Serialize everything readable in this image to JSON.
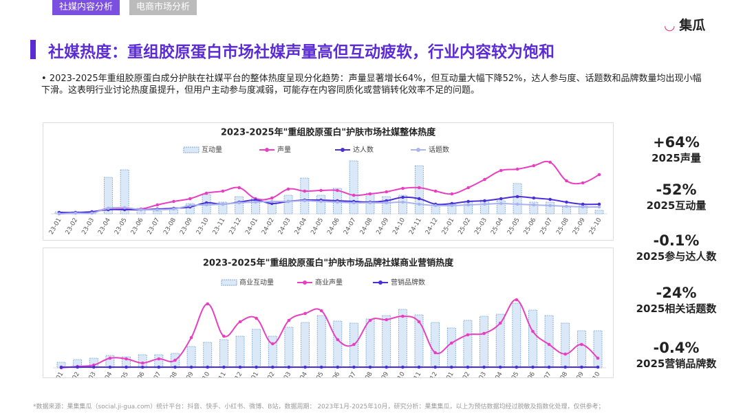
{
  "header": {
    "tabs": [
      "社媒内容分析",
      "电商市场分析"
    ],
    "logo": "集瓜"
  },
  "title": "社媒热度：重组胶原蛋白市场社媒声量高但互动疲软，行业内容较为饱和",
  "bullet": "2023-2025年重组胶原蛋白成分护肤在社媒平台的整体热度呈现分化趋势：声量显著增长64%，但互动量大幅下降52%，达人参与度、话题数和品牌数量均出现小幅下滑。这表明行业讨论热度虽提升，但用户主动参与度减弱，可能存在内容同质化或营销转化效率不足的问题。",
  "kpis": [
    {
      "value": "+64%",
      "label": "2025声量"
    },
    {
      "value": "-52%",
      "label": "2025互动量"
    },
    {
      "value": "-0.1%",
      "label": "2025参与达人数"
    },
    {
      "value": "-24%",
      "label": "2025相关话题数"
    },
    {
      "value": "-0.4%",
      "label": "2025营销品牌数"
    }
  ],
  "footnote": "*数据来源：果集集瓜（social.ji-gua.com）统计平台：抖音、快手、小红书、微博、B站，数据周期： 2023年1月-2025年10月，研究分析：果集集瓜，以上为预估数据均经过脱敏及指数化处理，仅供参考；",
  "chart_data": [
    {
      "type": "combo",
      "title": "2023-2025年\"重组胶原蛋白\"护肤市场社媒整体热度",
      "ylim": [
        0,
        110
      ],
      "categories": [
        "23-01",
        "23-02",
        "23-03",
        "23-04",
        "23-05",
        "23-06",
        "23-07",
        "23-08",
        "23-09",
        "23-10",
        "23-11",
        "23-12",
        "24-01",
        "24-02",
        "24-03",
        "24-04",
        "24-05",
        "24-06",
        "24-07",
        "24-08",
        "24-09",
        "24-10",
        "24-11",
        "24-12",
        "25-01",
        "25-02",
        "25-03",
        "25-04",
        "25-05",
        "25-06",
        "25-07",
        "25-08",
        "25-09",
        "25-10"
      ],
      "series": [
        {
          "name": "互动量",
          "kind": "bar",
          "color": "#7aa6d6",
          "values": [
            3,
            3,
            3,
            53,
            64,
            8,
            4,
            6,
            15,
            28,
            17,
            25,
            22,
            18,
            27,
            52,
            27,
            37,
            77,
            30,
            25,
            27,
            70,
            13,
            14,
            18,
            20,
            19,
            44,
            17,
            17,
            10,
            12,
            5
          ]
        },
        {
          "name": "声量",
          "kind": "line",
          "color": "#e83fc0",
          "values": [
            0,
            1,
            2,
            8,
            8,
            7,
            13,
            18,
            22,
            30,
            33,
            38,
            22,
            23,
            36,
            33,
            34,
            34,
            27,
            29,
            32,
            37,
            38,
            33,
            29,
            38,
            50,
            63,
            65,
            70,
            75,
            48,
            45,
            57
          ]
        },
        {
          "name": "达人数",
          "kind": "line",
          "color": "#4a2fd6",
          "values": [
            2,
            2,
            3,
            6,
            6,
            6,
            7,
            8,
            10,
            16,
            14,
            17,
            20,
            15,
            18,
            20,
            20,
            19,
            18,
            17,
            19,
            24,
            22,
            14,
            15,
            18,
            19,
            22,
            25,
            23,
            21,
            17,
            14,
            14
          ]
        },
        {
          "name": "话题数",
          "kind": "line",
          "color": "#a9b4ee",
          "values": [
            0,
            1,
            1,
            8,
            9,
            6,
            6,
            7,
            12,
            13,
            14,
            16,
            17,
            18,
            18,
            19,
            18,
            17,
            16,
            16,
            16,
            17,
            14,
            12,
            12,
            13,
            14,
            15,
            14,
            13,
            12,
            11,
            10,
            10
          ]
        }
      ]
    },
    {
      "type": "combo",
      "title": "2023-2025年\"重组胶原蛋白\"护肤市场品牌社媒商业营销热度",
      "ylim": [
        0,
        110
      ],
      "categories": [
        "23-01",
        "23-02",
        "23-03",
        "23-04",
        "23-05",
        "23-06",
        "23-07",
        "23-08",
        "23-09",
        "23-10",
        "23-11",
        "23-12",
        "24-01",
        "24-02",
        "24-03",
        "24-04",
        "24-05",
        "24-06",
        "24-07",
        "24-08",
        "24-09",
        "24-10",
        "24-11",
        "24-12",
        "25-01",
        "25-02",
        "25-03",
        "25-04",
        "25-05",
        "25-06",
        "25-07",
        "25-08",
        "25-09",
        "25-10"
      ],
      "series": [
        {
          "name": "商业互动量",
          "kind": "bar",
          "color": "#7aa6d6",
          "values": [
            8,
            12,
            14,
            18,
            16,
            19,
            19,
            21,
            31,
            37,
            41,
            46,
            56,
            46,
            59,
            66,
            76,
            68,
            65,
            71,
            76,
            85,
            77,
            66,
            58,
            69,
            75,
            78,
            94,
            84,
            76,
            65,
            54,
            54
          ]
        },
        {
          "name": "商业声量",
          "kind": "line",
          "color": "#e83fc0",
          "values": [
            0,
            2,
            4,
            14,
            13,
            7,
            13,
            11,
            44,
            93,
            46,
            67,
            72,
            35,
            69,
            79,
            83,
            41,
            34,
            69,
            70,
            75,
            67,
            22,
            36,
            48,
            50,
            65,
            99,
            53,
            34,
            20,
            34,
            14
          ]
        },
        {
          "name": "营销品牌数",
          "kind": "line",
          "color": "#4a2fd6",
          "values": [
            1,
            1,
            1,
            1,
            1,
            1,
            1,
            1,
            1,
            1,
            1,
            1,
            1,
            1,
            1,
            1,
            1,
            1,
            1,
            1,
            1,
            1,
            1,
            1,
            1,
            1,
            1,
            1,
            1,
            1,
            1,
            1,
            1,
            1
          ]
        }
      ]
    }
  ]
}
